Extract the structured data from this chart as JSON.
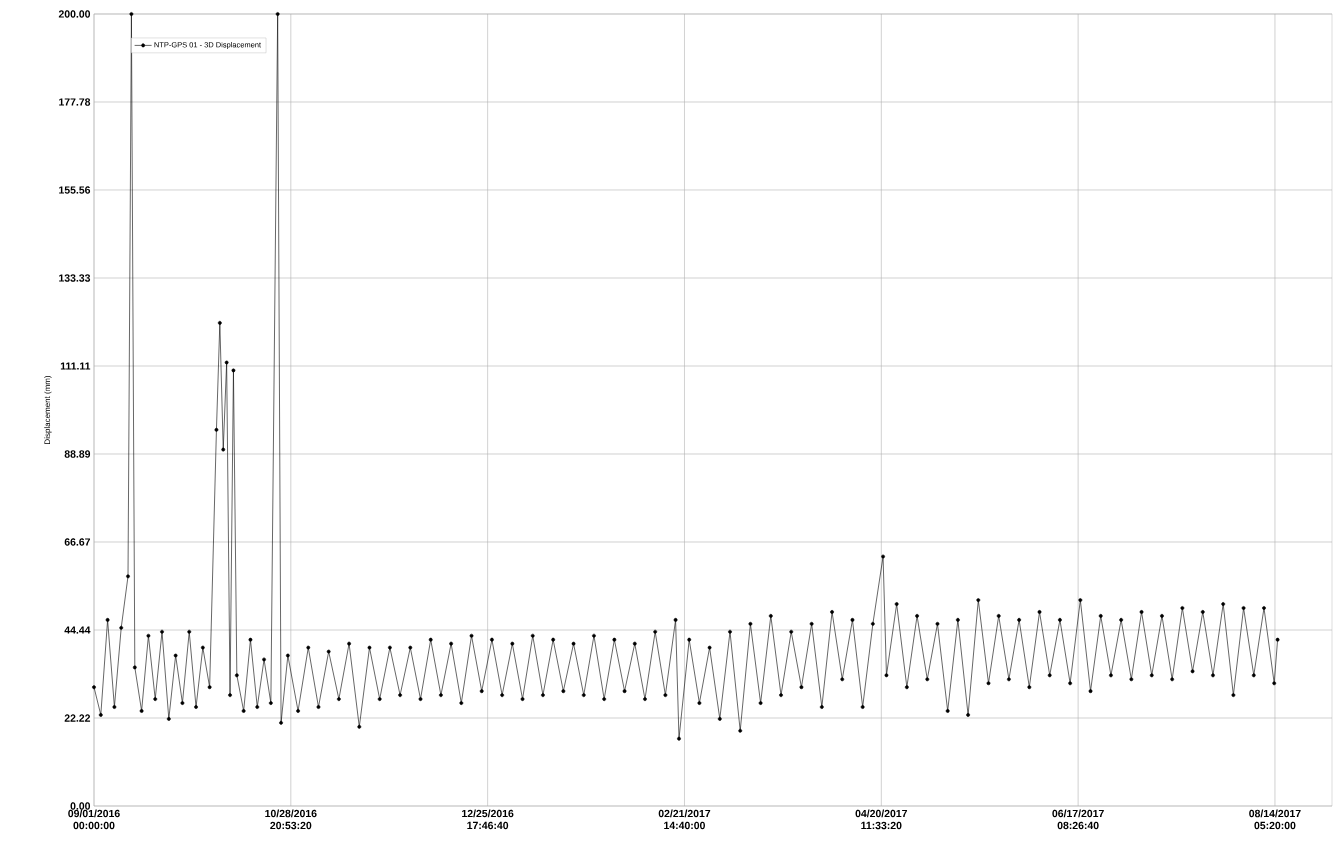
{
  "chart_data": {
    "type": "line",
    "ylabel": "Displacement (mm)",
    "grid": true,
    "legend": "top left",
    "marker": "circle",
    "line_style": "solid",
    "xlim": [
      "2016-09-01T00:00",
      "2017-08-31T00:00"
    ],
    "ylim": [
      0,
      200
    ],
    "xticks": [
      {
        "value": "2016-09-01T00:00:00",
        "label": "09/01/2016 00:00:00"
      },
      {
        "value": "2016-10-28T20:53:20",
        "label": "10/28/2016 20:53:20"
      },
      {
        "value": "2016-12-25T17:46:40",
        "label": "12/25/2016 17:46:40"
      },
      {
        "value": "2017-02-21T14:40:00",
        "label": "02/21/2017 14:40:00"
      },
      {
        "value": "2017-04-20T11:33:20",
        "label": "04/20/2017 11:33:20"
      },
      {
        "value": "2017-06-17T08:26:40",
        "label": "06/17/2017 08:26:40"
      },
      {
        "value": "2017-08-14T05:20:00",
        "label": "08/14/2017 05:20:00"
      }
    ],
    "yticks": [
      {
        "value": 0,
        "label": "0.00"
      },
      22.22,
      44.44,
      66.67,
      88.89,
      111.11,
      133.33,
      155.56,
      177.78,
      {
        "value": 200,
        "label": "200.00"
      }
    ],
    "x": [
      "2016-09-01",
      "2016-09-03",
      "2016-09-05",
      "2016-09-07",
      "2016-09-09",
      "2016-09-11",
      "2016-09-12",
      "2016-09-13",
      "2016-09-15",
      "2016-09-17",
      "2016-09-19",
      "2016-09-21",
      "2016-09-23",
      "2016-09-25",
      "2016-09-27",
      "2016-09-29",
      "2016-10-01",
      "2016-10-03",
      "2016-10-05",
      "2016-10-07",
      "2016-10-08",
      "2016-10-09",
      "2016-10-10",
      "2016-10-11",
      "2016-10-12",
      "2016-10-13",
      "2016-10-15",
      "2016-10-17",
      "2016-10-19",
      "2016-10-21",
      "2016-10-23",
      "2016-10-25",
      "2016-10-26",
      "2016-10-28",
      "2016-10-31",
      "2016-11-03",
      "2016-11-06",
      "2016-11-09",
      "2016-11-12",
      "2016-11-15",
      "2016-11-18",
      "2016-11-21",
      "2016-11-24",
      "2016-11-27",
      "2016-11-30",
      "2016-12-03",
      "2016-12-06",
      "2016-12-09",
      "2016-12-12",
      "2016-12-15",
      "2016-12-18",
      "2016-12-21",
      "2016-12-24",
      "2016-12-27",
      "2016-12-30",
      "2017-01-02",
      "2017-01-05",
      "2017-01-08",
      "2017-01-11",
      "2017-01-14",
      "2017-01-17",
      "2017-01-20",
      "2017-01-23",
      "2017-01-26",
      "2017-01-29",
      "2017-02-01",
      "2017-02-04",
      "2017-02-07",
      "2017-02-10",
      "2017-02-13",
      "2017-02-16",
      "2017-02-19",
      "2017-02-20",
      "2017-02-23",
      "2017-02-26",
      "2017-03-01",
      "2017-03-04",
      "2017-03-07",
      "2017-03-10",
      "2017-03-13",
      "2017-03-16",
      "2017-03-19",
      "2017-03-22",
      "2017-03-25",
      "2017-03-28",
      "2017-03-31",
      "2017-04-03",
      "2017-04-06",
      "2017-04-09",
      "2017-04-12",
      "2017-04-15",
      "2017-04-18",
      "2017-04-21",
      "2017-04-22",
      "2017-04-25",
      "2017-04-28",
      "2017-05-01",
      "2017-05-04",
      "2017-05-07",
      "2017-05-10",
      "2017-05-13",
      "2017-05-16",
      "2017-05-19",
      "2017-05-22",
      "2017-05-25",
      "2017-05-28",
      "2017-05-31",
      "2017-06-03",
      "2017-06-06",
      "2017-06-09",
      "2017-06-12",
      "2017-06-15",
      "2017-06-18",
      "2017-06-21",
      "2017-06-24",
      "2017-06-27",
      "2017-06-30",
      "2017-07-03",
      "2017-07-06",
      "2017-07-09",
      "2017-07-12",
      "2017-07-15",
      "2017-07-18",
      "2017-07-21",
      "2017-07-24",
      "2017-07-27",
      "2017-07-30",
      "2017-08-02",
      "2017-08-05",
      "2017-08-08",
      "2017-08-11",
      "2017-08-14",
      "2017-08-15"
    ],
    "series": [
      {
        "name": "NTP-GPS 01 - 3D Displacement",
        "color": "#000000",
        "values": [
          30,
          23,
          47,
          25,
          45,
          58,
          200,
          35,
          24,
          43,
          27,
          44,
          22,
          38,
          26,
          44,
          25,
          40,
          30,
          95,
          122,
          90,
          112,
          28,
          110,
          33,
          24,
          42,
          25,
          37,
          26,
          200,
          21,
          38,
          24,
          40,
          25,
          39,
          27,
          41,
          20,
          40,
          27,
          40,
          28,
          40,
          27,
          42,
          28,
          41,
          26,
          43,
          29,
          42,
          28,
          41,
          27,
          43,
          28,
          42,
          29,
          41,
          28,
          43,
          27,
          42,
          29,
          41,
          27,
          44,
          28,
          47,
          17,
          42,
          26,
          40,
          22,
          44,
          19,
          46,
          26,
          48,
          28,
          44,
          30,
          46,
          25,
          49,
          32,
          47,
          25,
          46,
          63,
          33,
          51,
          30,
          48,
          32,
          46,
          24,
          47,
          23,
          52,
          31,
          48,
          32,
          47,
          30,
          49,
          33,
          47,
          31,
          52,
          29,
          48,
          33,
          47,
          32,
          49,
          33,
          48,
          32,
          50,
          34,
          49,
          33,
          51,
          28,
          50,
          33,
          50,
          31,
          42
        ]
      }
    ]
  }
}
